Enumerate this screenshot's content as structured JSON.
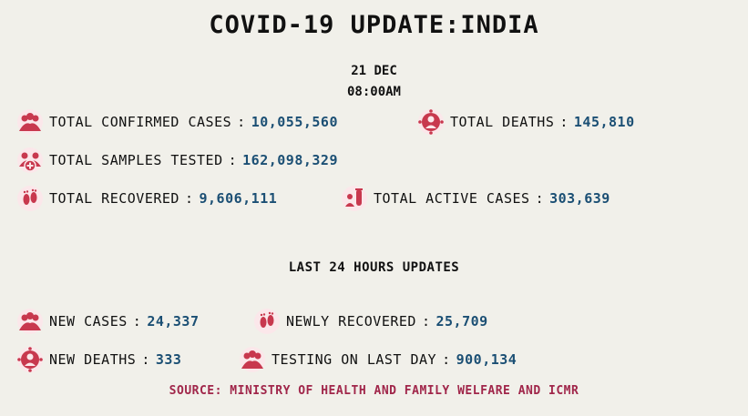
{
  "title": "COVID-19 UPDATE:INDIA",
  "date": "21 DEC",
  "time": "08:00AM",
  "colors": {
    "value": "#1b4f74",
    "icon": "#c8384e",
    "source": "#a0264a",
    "background": "#f1f0ea"
  },
  "totals": {
    "confirmed": {
      "label": "TOTAL CONFIRMED CASES",
      "sep": ":",
      "value": "10,055,560",
      "icon": "people-group-icon"
    },
    "deaths": {
      "label": "TOTAL DEATHS",
      "sep": ":",
      "value": "145,810",
      "icon": "virus-person-icon"
    },
    "samples": {
      "label": "TOTAL SAMPLES TESTED",
      "sep": ":",
      "value": "162,098,329",
      "icon": "people-plus-icon"
    },
    "recovered": {
      "label": "TOTAL RECOVERED",
      "sep": ":",
      "value": "9,606,111",
      "icon": "footprints-icon"
    },
    "active": {
      "label": "TOTAL ACTIVE CASES",
      "sep": ":",
      "value": "303,639",
      "icon": "test-tube-person-icon"
    }
  },
  "last24": {
    "heading": "LAST 24 HOURS UPDATES",
    "new_cases": {
      "label": "NEW CASES",
      "sep": ":",
      "value": "24,337",
      "icon": "people-group-icon"
    },
    "newly_recovered": {
      "label": "NEWLY RECOVERED",
      "sep": ":",
      "value": "25,709",
      "icon": "footprints-icon"
    },
    "new_deaths": {
      "label": "NEW DEATHS",
      "sep": ":",
      "value": "333",
      "icon": "virus-person-icon"
    },
    "testing": {
      "label": "TESTING ON LAST DAY",
      "sep": ":",
      "value": "900,134",
      "icon": "people-group-icon"
    }
  },
  "source": "SOURCE: MINISTRY OF HEALTH AND FAMILY WELFARE AND ICMR"
}
